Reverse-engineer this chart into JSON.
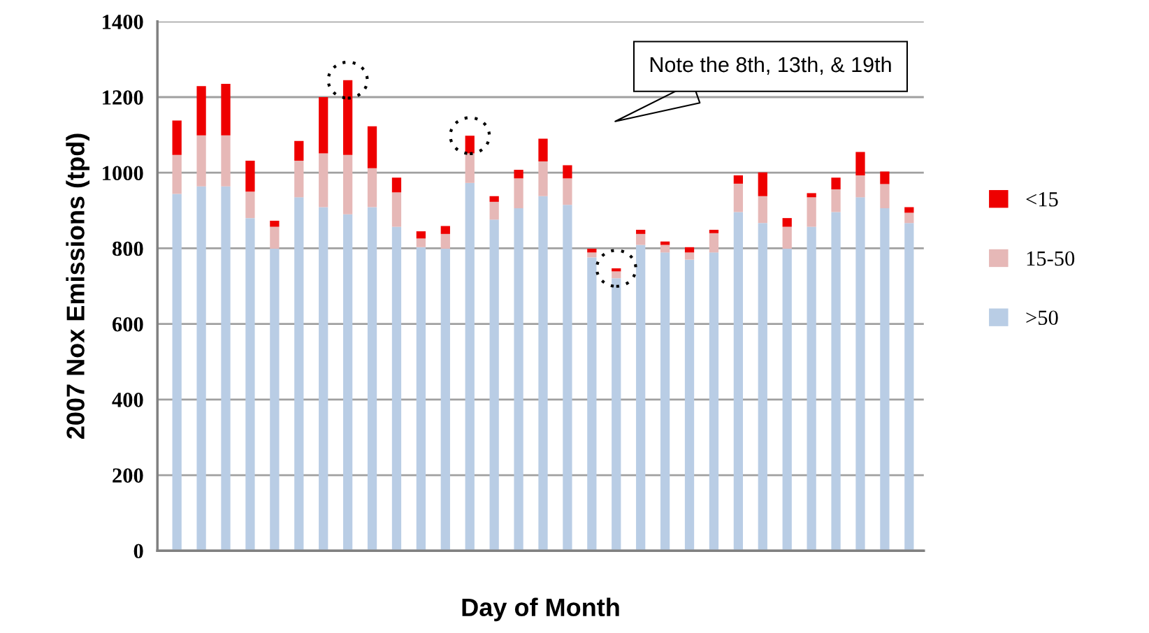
{
  "chart_data": {
    "type": "bar",
    "stacked": true,
    "xlabel": "Day of Month",
    "ylabel": "2007 Nox Emissions (tpd)",
    "categories": [
      null,
      null,
      null,
      null,
      null,
      null,
      null,
      null,
      null,
      null,
      null,
      null,
      null,
      null,
      null,
      null,
      null,
      null,
      null,
      null,
      null,
      null,
      null,
      null,
      null,
      null,
      null,
      null,
      null,
      null,
      null
    ],
    "series": [
      {
        "name": ">50",
        "color": "#b9cde5",
        "values": [
          944,
          964,
          964,
          880,
          799,
          935,
          909,
          890,
          909,
          857,
          803,
          799,
          973,
          876,
          906,
          938,
          915,
          776,
          721,
          809,
          789,
          770,
          789,
          896,
          867,
          799,
          857,
          896,
          935,
          906,
          867
        ]
      },
      {
        "name": "15-50",
        "color": "#e6b8b7",
        "values": [
          103,
          135,
          135,
          70,
          58,
          97,
          142,
          157,
          103,
          91,
          23,
          39,
          78,
          47,
          79,
          92,
          70,
          13,
          18,
          29,
          20,
          19,
          51,
          75,
          71,
          58,
          78,
          60,
          58,
          64,
          27
        ]
      },
      {
        "name": "<15",
        "color": "#ee0000",
        "values": [
          91,
          130,
          136,
          82,
          16,
          52,
          149,
          198,
          111,
          39,
          19,
          21,
          47,
          15,
          23,
          60,
          35,
          10,
          8,
          11,
          9,
          14,
          9,
          22,
          63,
          23,
          11,
          31,
          62,
          33,
          15
        ]
      }
    ],
    "ylim": [
      0,
      1400
    ],
    "yticks": [
      0,
      200,
      400,
      600,
      800,
      1000,
      1200,
      1400
    ],
    "grid": "y",
    "legend": "right",
    "annotations": [
      "Note the 8th, 13th, & 19th"
    ]
  }
}
